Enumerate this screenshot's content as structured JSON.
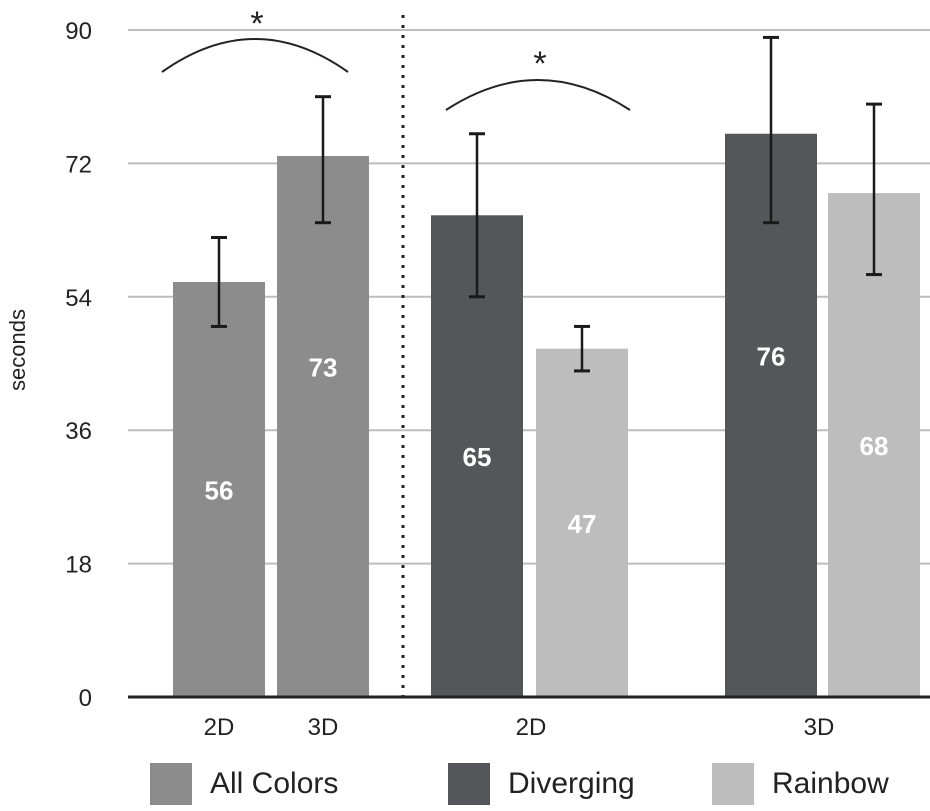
{
  "chart_data": {
    "type": "bar",
    "xlabel": "",
    "ylabel": "seconds",
    "ylim": [
      0,
      90
    ],
    "yticks": [
      "0",
      "18",
      "36",
      "54",
      "72",
      "90"
    ],
    "grid": true,
    "legend_position": "bottom",
    "bars": [
      {
        "group": "2D",
        "series": "All Colors",
        "value": 56,
        "label": "56",
        "err_low": 50,
        "err_high": 62
      },
      {
        "group": "3D",
        "series": "All Colors",
        "value": 73,
        "label": "73",
        "err_low": 64,
        "err_high": 81
      },
      {
        "group": "2D",
        "series": "Diverging",
        "value": 65,
        "label": "65",
        "err_low": 54,
        "err_high": 76
      },
      {
        "group": "2D",
        "series": "Rainbow",
        "value": 47,
        "label": "47",
        "err_low": 44,
        "err_high": 50
      },
      {
        "group": "3D",
        "series": "Diverging",
        "value": 76,
        "label": "76",
        "err_low": 64,
        "err_high": 89
      },
      {
        "group": "3D",
        "series": "Rainbow",
        "value": 68,
        "label": "68",
        "err_low": 57,
        "err_high": 80
      }
    ],
    "category_labels": [
      "2D",
      "3D",
      "2D",
      "3D"
    ],
    "significance_marks": [
      "*",
      "*"
    ],
    "series": [
      {
        "name": "All Colors",
        "color": "#8c8c8c"
      },
      {
        "name": "Diverging",
        "color": "#55565a"
      },
      {
        "name": "Rainbow",
        "color": "#bdbdbd"
      }
    ]
  }
}
